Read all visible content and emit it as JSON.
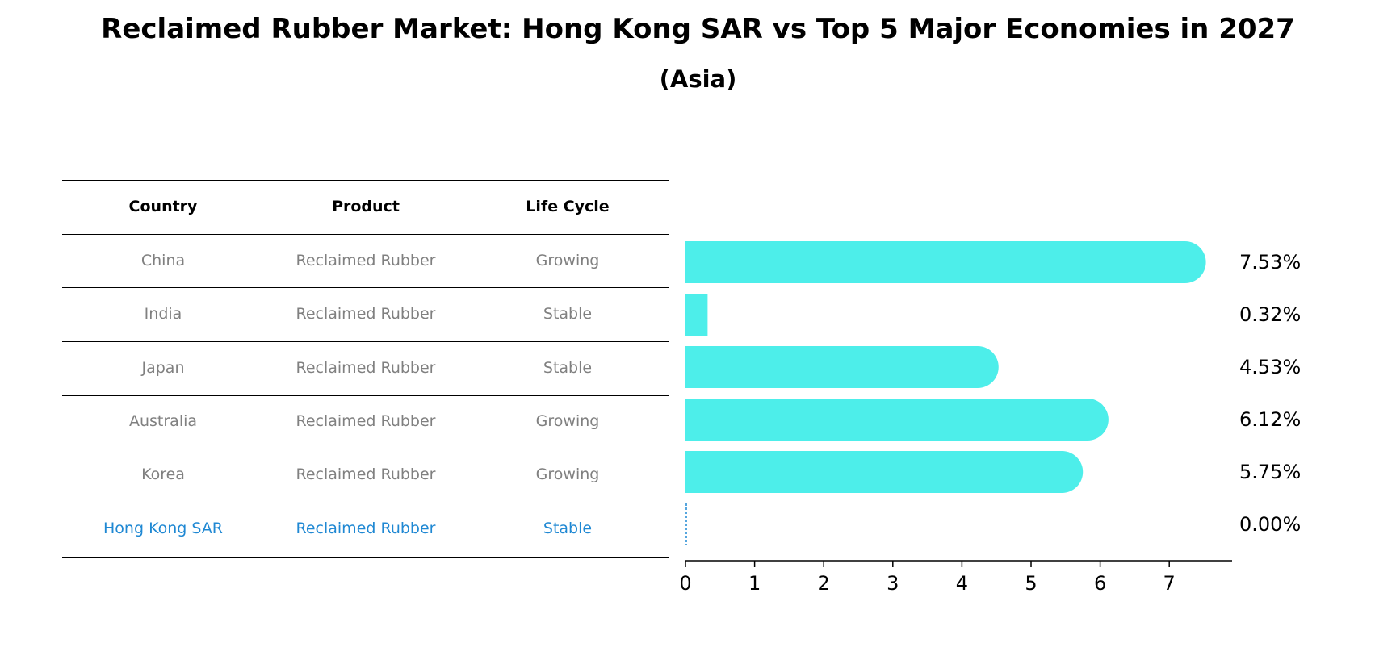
{
  "title": "Reclaimed Rubber Market: Hong Kong SAR vs Top 5 Major Economies in 2027",
  "subtitle": "(Asia)",
  "colors": {
    "bar": "#4DEEEA",
    "muted_text": "#808080",
    "highlight_text": "#1F88D3",
    "line": "#000000"
  },
  "table": {
    "columns": [
      "Country",
      "Product",
      "Life Cycle"
    ],
    "rows": [
      {
        "country": "China",
        "product": "Reclaimed Rubber",
        "life_cycle": "Growing",
        "highlight": false
      },
      {
        "country": "India",
        "product": "Reclaimed Rubber",
        "life_cycle": "Stable",
        "highlight": false
      },
      {
        "country": "Japan",
        "product": "Reclaimed Rubber",
        "life_cycle": "Stable",
        "highlight": false
      },
      {
        "country": "Australia",
        "product": "Reclaimed Rubber",
        "life_cycle": "Growing",
        "highlight": false
      },
      {
        "country": "Korea",
        "product": "Reclaimed Rubber",
        "life_cycle": "Growing",
        "highlight": false
      },
      {
        "country": "Hong Kong SAR",
        "product": "Reclaimed Rubber",
        "life_cycle": "Stable",
        "highlight": true
      }
    ]
  },
  "chart_data": {
    "type": "bar",
    "orientation": "horizontal",
    "categories": [
      "China",
      "India",
      "Japan",
      "Australia",
      "Korea",
      "Hong Kong SAR"
    ],
    "values": [
      7.53,
      0.32,
      4.53,
      6.12,
      5.75,
      0.0
    ],
    "value_labels": [
      "7.53%",
      "0.32%",
      "4.53%",
      "6.12%",
      "5.75%",
      "0.00%"
    ],
    "xlim": [
      0,
      7.9
    ],
    "xticks": [
      0,
      1,
      2,
      3,
      4,
      5,
      6,
      7
    ],
    "grid": false
  }
}
